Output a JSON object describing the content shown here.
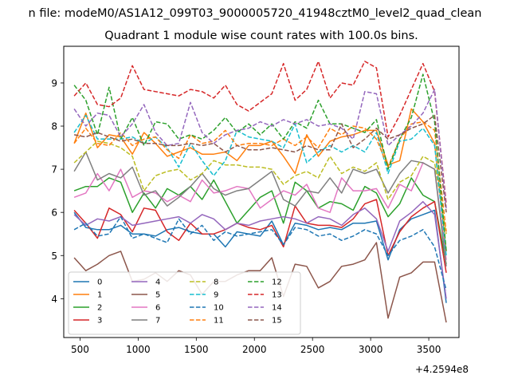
{
  "chart_data": {
    "type": "line",
    "suptitle": "n file: modeM0/AS1A12_099T03_9000005720_41948cztM0_level2_quad_clean",
    "title": "Quadrant 1 module wise count rates with 100.0s bins.",
    "xlabel": "",
    "ylabel": "",
    "x_offset_label": "+4.2594e8",
    "xlim": [
      360,
      3760
    ],
    "ylim": [
      3.1,
      9.85
    ],
    "xticks": [
      500,
      1000,
      1500,
      2000,
      2500,
      3000,
      3500
    ],
    "yticks": [
      4,
      5,
      6,
      7,
      8,
      9
    ],
    "x": [
      450,
      550,
      650,
      750,
      850,
      950,
      1050,
      1150,
      1250,
      1350,
      1450,
      1550,
      1650,
      1750,
      1850,
      1950,
      2050,
      2150,
      2250,
      2350,
      2450,
      2550,
      2650,
      2750,
      2850,
      2950,
      3050,
      3150,
      3250,
      3350,
      3450,
      3550,
      3650
    ],
    "legend": {
      "placement": "lower-left",
      "columns": 4
    },
    "series": [
      {
        "name": "0",
        "color": "#1f77b4",
        "dash": "solid",
        "values": [
          6.0,
          5.65,
          5.6,
          5.6,
          5.7,
          5.5,
          5.5,
          5.45,
          5.6,
          5.65,
          5.55,
          5.5,
          5.5,
          5.2,
          5.55,
          5.5,
          5.45,
          5.8,
          5.25,
          5.75,
          5.7,
          5.6,
          5.65,
          5.6,
          5.75,
          5.75,
          5.8,
          4.9,
          5.6,
          5.85,
          5.95,
          6.05,
          3.9
        ]
      },
      {
        "name": "1",
        "color": "#ff7f0e",
        "dash": "solid",
        "values": [
          7.6,
          8.3,
          7.5,
          7.8,
          7.75,
          7.35,
          7.85,
          7.6,
          7.3,
          7.4,
          7.5,
          7.35,
          7.35,
          7.4,
          7.2,
          7.55,
          7.55,
          7.65,
          7.3,
          6.9,
          7.8,
          7.3,
          7.65,
          7.75,
          7.8,
          7.9,
          7.9,
          7.1,
          7.2,
          8.4,
          8.1,
          7.6,
          5.1
        ]
      },
      {
        "name": "2",
        "color": "#2ca02c",
        "dash": "solid",
        "values": [
          6.5,
          6.6,
          6.6,
          6.8,
          6.7,
          6.0,
          6.45,
          6.1,
          6.55,
          6.4,
          6.6,
          6.3,
          6.75,
          6.25,
          5.75,
          6.05,
          6.35,
          6.5,
          5.75,
          6.7,
          6.5,
          6.1,
          6.25,
          6.2,
          6.05,
          6.6,
          6.45,
          5.9,
          6.2,
          6.8,
          6.4,
          6.25,
          4.8
        ]
      },
      {
        "name": "3",
        "color": "#d62728",
        "dash": "solid",
        "values": [
          6.05,
          5.75,
          5.4,
          6.1,
          5.95,
          5.55,
          6.1,
          6.05,
          5.55,
          5.35,
          5.75,
          5.5,
          5.5,
          5.6,
          5.75,
          5.65,
          5.6,
          5.7,
          5.2,
          6.15,
          5.75,
          5.7,
          5.7,
          5.65,
          5.85,
          6.2,
          6.3,
          5.0,
          5.55,
          5.9,
          6.1,
          6.25,
          4.6
        ]
      },
      {
        "name": "4",
        "color": "#9467bd",
        "dash": "solid",
        "values": [
          5.95,
          5.7,
          5.85,
          5.8,
          5.9,
          5.7,
          5.75,
          5.8,
          5.85,
          5.9,
          5.75,
          5.95,
          5.85,
          5.6,
          5.75,
          5.7,
          5.8,
          5.85,
          5.9,
          5.85,
          5.75,
          5.9,
          5.85,
          5.7,
          5.95,
          6.1,
          5.85,
          5.1,
          5.8,
          6.0,
          6.25,
          5.95,
          4.0
        ]
      },
      {
        "name": "5",
        "color": "#8c564b",
        "dash": "solid",
        "values": [
          4.95,
          4.65,
          4.8,
          5.0,
          5.1,
          4.4,
          4.45,
          4.6,
          4.4,
          4.65,
          4.55,
          4.1,
          4.4,
          4.4,
          4.55,
          4.65,
          4.65,
          4.95,
          4.05,
          4.8,
          4.75,
          4.25,
          4.4,
          4.75,
          4.8,
          4.9,
          5.3,
          3.55,
          4.5,
          4.6,
          4.85,
          4.85,
          3.45
        ]
      },
      {
        "name": "6",
        "color": "#e377c2",
        "dash": "solid",
        "values": [
          6.35,
          6.45,
          6.9,
          6.5,
          7.0,
          6.35,
          6.5,
          6.45,
          6.25,
          6.4,
          6.25,
          6.75,
          6.45,
          6.5,
          6.6,
          6.55,
          6.1,
          6.3,
          6.5,
          6.4,
          6.65,
          6.1,
          6.0,
          6.8,
          6.5,
          6.5,
          6.55,
          6.1,
          6.65,
          6.5,
          7.15,
          7.0,
          4.9
        ]
      },
      {
        "name": "7",
        "color": "#7f7f7f",
        "dash": "solid",
        "values": [
          6.95,
          7.4,
          6.75,
          6.9,
          6.8,
          7.05,
          6.4,
          6.5,
          6.15,
          6.35,
          6.6,
          6.9,
          6.55,
          6.4,
          6.5,
          6.55,
          6.75,
          6.95,
          6.3,
          6.15,
          6.5,
          6.45,
          6.8,
          6.45,
          7.0,
          6.9,
          7.0,
          6.45,
          6.9,
          7.2,
          7.15,
          7.0,
          4.75
        ]
      },
      {
        "name": "8",
        "color": "#bcbd22",
        "dash": "dashed",
        "values": [
          7.15,
          7.4,
          7.65,
          7.6,
          7.5,
          7.3,
          6.5,
          6.85,
          6.95,
          7.0,
          6.75,
          6.9,
          7.2,
          7.1,
          7.1,
          7.05,
          7.05,
          7.0,
          6.65,
          6.85,
          6.95,
          6.8,
          7.3,
          6.9,
          7.05,
          6.95,
          7.15,
          6.3,
          6.7,
          6.85,
          7.3,
          7.15,
          5.5
        ]
      },
      {
        "name": "9",
        "color": "#17becf",
        "dash": "dashed",
        "values": [
          7.85,
          8.25,
          7.7,
          7.7,
          7.7,
          7.75,
          7.6,
          7.75,
          7.5,
          7.05,
          7.6,
          7.2,
          6.85,
          7.2,
          7.9,
          7.75,
          7.7,
          7.65,
          7.5,
          8.05,
          7.15,
          7.4,
          7.55,
          7.4,
          7.55,
          7.4,
          7.85,
          6.9,
          7.65,
          7.7,
          7.95,
          7.55,
          5.0
        ]
      },
      {
        "name": "10",
        "color": "#1f77b4",
        "dash": "dashed",
        "values": [
          5.6,
          5.75,
          5.45,
          5.5,
          5.9,
          5.4,
          5.5,
          5.4,
          5.3,
          5.85,
          5.5,
          5.7,
          5.35,
          5.55,
          5.45,
          5.5,
          5.55,
          5.6,
          5.25,
          5.65,
          5.6,
          5.45,
          5.5,
          5.35,
          5.45,
          5.6,
          5.5,
          5.0,
          5.35,
          5.45,
          5.6,
          5.2,
          4.2
        ]
      },
      {
        "name": "11",
        "color": "#ff7f0e",
        "dash": "dashed",
        "values": [
          7.6,
          7.95,
          7.6,
          7.55,
          7.85,
          7.55,
          7.7,
          7.75,
          7.45,
          7.25,
          7.8,
          7.6,
          7.65,
          7.9,
          7.55,
          7.6,
          7.6,
          7.55,
          7.7,
          7.55,
          7.75,
          7.5,
          7.95,
          7.8,
          8.0,
          7.95,
          7.7,
          7.05,
          7.7,
          8.05,
          8.1,
          7.9,
          5.55
        ]
      },
      {
        "name": "12",
        "color": "#2ca02c",
        "dash": "dashed",
        "values": [
          8.95,
          8.6,
          7.8,
          8.9,
          7.7,
          8.2,
          7.55,
          8.1,
          8.05,
          7.7,
          7.8,
          7.7,
          7.9,
          8.2,
          7.85,
          8.05,
          7.8,
          8.05,
          7.7,
          8.1,
          7.95,
          8.6,
          8.05,
          8.05,
          7.95,
          7.85,
          8.15,
          7.0,
          7.7,
          8.2,
          9.2,
          8.1,
          5.1
        ]
      },
      {
        "name": "13",
        "color": "#d62728",
        "dash": "dashed",
        "values": [
          8.7,
          9.0,
          8.5,
          8.45,
          8.65,
          9.4,
          8.85,
          8.8,
          8.75,
          8.7,
          8.85,
          8.8,
          8.65,
          8.95,
          8.5,
          8.35,
          8.55,
          8.75,
          9.45,
          8.6,
          8.85,
          9.5,
          8.65,
          9.0,
          8.95,
          9.5,
          9.35,
          7.75,
          8.25,
          8.85,
          9.45,
          8.8,
          6.2
        ]
      },
      {
        "name": "14",
        "color": "#9467bd",
        "dash": "dashed",
        "values": [
          8.4,
          8.0,
          8.3,
          8.25,
          7.75,
          8.05,
          8.5,
          7.85,
          7.55,
          7.6,
          8.55,
          7.85,
          7.6,
          7.8,
          7.9,
          7.95,
          8.1,
          8.0,
          8.15,
          8.05,
          8.15,
          8.0,
          8.05,
          7.95,
          7.7,
          8.8,
          8.75,
          7.55,
          7.8,
          8.0,
          8.3,
          8.85,
          6.1
        ]
      },
      {
        "name": "15",
        "color": "#8c564b",
        "dash": "dashed",
        "values": [
          7.8,
          7.75,
          7.85,
          7.75,
          7.65,
          7.7,
          7.6,
          7.6,
          7.55,
          7.55,
          7.6,
          7.55,
          7.6,
          7.4,
          7.55,
          7.45,
          7.45,
          7.5,
          7.45,
          7.4,
          7.55,
          7.45,
          7.45,
          8.05,
          7.5,
          7.7,
          7.95,
          7.7,
          7.8,
          7.95,
          8.05,
          8.25,
          6.0
        ]
      }
    ]
  }
}
